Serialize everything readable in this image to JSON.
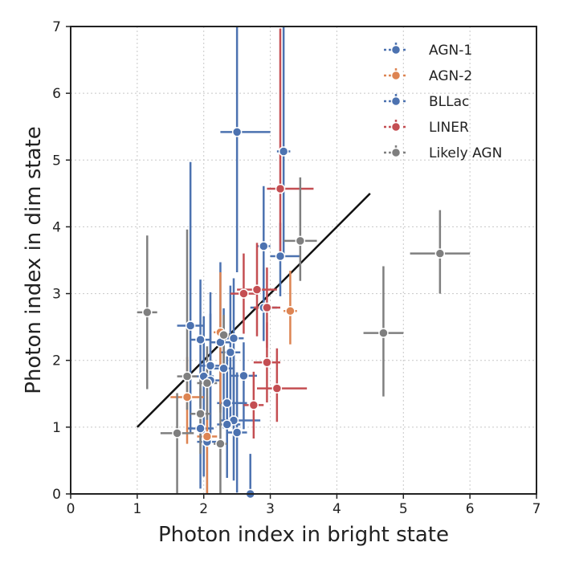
{
  "chart_data": {
    "type": "scatter",
    "xlabel": "Photon index in bright state",
    "ylabel": "Photon index in dim state",
    "xlim": [
      0,
      7
    ],
    "ylim": [
      0,
      7
    ],
    "xticks": [
      "0",
      "1",
      "2",
      "3",
      "4",
      "5",
      "6",
      "7"
    ],
    "yticks": [
      "0",
      "1",
      "2",
      "3",
      "4",
      "5",
      "6",
      "7"
    ],
    "grid": true,
    "legend_position": "top-right",
    "reference_line": {
      "x": [
        1,
        4.5
      ],
      "y": [
        1,
        4.5
      ],
      "color": "#111111"
    },
    "series": [
      {
        "name": "AGN-1",
        "color": "#4c72b0",
        "points": [
          {
            "x": 2.5,
            "y": 5.42,
            "xl": 0.25,
            "xr": 0.5,
            "yl": 2.1,
            "yh": 1.6
          },
          {
            "x": 3.2,
            "y": 5.13,
            "xl": 0.1,
            "xr": 0.1,
            "yl": 1.6,
            "yh": 1.9
          },
          {
            "x": 2.9,
            "y": 3.71,
            "xl": 0.1,
            "xr": 0.1,
            "yl": 0.8,
            "yh": 0.9
          },
          {
            "x": 3.15,
            "y": 3.56,
            "xl": 0.15,
            "xr": 0.3,
            "yl": 0.6,
            "yh": 0.5
          },
          {
            "x": 2.9,
            "y": 2.79,
            "xl": 0.2,
            "xr": 0.2,
            "yl": 0.5,
            "yh": 0.6
          },
          {
            "x": 1.8,
            "y": 2.52,
            "xl": 0.2,
            "xr": 0.2,
            "yl": 1.6,
            "yh": 2.45
          },
          {
            "x": 1.95,
            "y": 2.31,
            "xl": 0.15,
            "xr": 0.15,
            "yl": 1.0,
            "yh": 0.9
          },
          {
            "x": 2.45,
            "y": 2.33,
            "xl": 0.15,
            "xr": 0.15,
            "yl": 1.2,
            "yh": 0.9
          },
          {
            "x": 2.25,
            "y": 2.27,
            "xl": 0.15,
            "xr": 0.15,
            "yl": 1.0,
            "yh": 1.2
          },
          {
            "x": 2.4,
            "y": 2.12,
            "xl": 0.15,
            "xr": 0.15,
            "yl": 1.0,
            "yh": 1.0
          },
          {
            "x": 2.1,
            "y": 1.92,
            "xl": 0.15,
            "xr": 0.15,
            "yl": 0.9,
            "yh": 1.1
          },
          {
            "x": 2.3,
            "y": 1.88,
            "xl": 0.15,
            "xr": 0.15,
            "yl": 0.9,
            "yh": 0.9
          },
          {
            "x": 2.0,
            "y": 1.76,
            "xl": 0.15,
            "xr": 0.15,
            "yl": 1.5,
            "yh": 0.9
          },
          {
            "x": 2.1,
            "y": 1.7,
            "xl": 0.15,
            "xr": 0.15,
            "yl": 0.9,
            "yh": 1.0
          },
          {
            "x": 2.6,
            "y": 1.77,
            "xl": 0.2,
            "xr": 0.2,
            "yl": 0.8,
            "yh": 0.5
          },
          {
            "x": 2.35,
            "y": 1.36,
            "xl": 0.15,
            "xr": 0.3,
            "yl": 0.6,
            "yh": 0.7
          },
          {
            "x": 2.45,
            "y": 1.1,
            "xl": 0.2,
            "xr": 0.4,
            "yl": 0.9,
            "yh": 1.0
          },
          {
            "x": 2.35,
            "y": 1.04,
            "xl": 0.15,
            "xr": 0.2,
            "yl": 0.8,
            "yh": 0.9
          },
          {
            "x": 1.95,
            "y": 0.98,
            "xl": 0.2,
            "xr": 0.2,
            "yl": 0.9,
            "yh": 0.6
          },
          {
            "x": 2.5,
            "y": 0.92,
            "xl": 0.15,
            "xr": 0.15,
            "yl": 0.9,
            "yh": 0.9
          },
          {
            "x": 2.05,
            "y": 0.78,
            "xl": 0.15,
            "xr": 0.15,
            "yl": 0.78,
            "yh": 1.0
          },
          {
            "x": 2.7,
            "y": 0.0,
            "xl": 0.0,
            "xr": 0.0,
            "yl": 0.0,
            "yh": 0.6
          }
        ]
      },
      {
        "name": "AGN-2",
        "color": "#dd8452",
        "points": [
          {
            "x": 3.3,
            "y": 2.74,
            "xl": 0.1,
            "xr": 0.1,
            "yl": 0.5,
            "yh": 0.6
          },
          {
            "x": 2.25,
            "y": 2.42,
            "xl": 0.1,
            "xr": 0.1,
            "yl": 1.2,
            "yh": 0.9
          },
          {
            "x": 1.75,
            "y": 1.45,
            "xl": 0.25,
            "xr": 0.25,
            "yl": 0.7,
            "yh": 0.6
          },
          {
            "x": 2.05,
            "y": 0.86,
            "xl": 0.15,
            "xr": 0.15,
            "yl": 0.86,
            "yh": 0.6
          }
        ]
      },
      {
        "name": "BLLac",
        "color": "#4c72b0",
        "points": []
      },
      {
        "name": "LINER",
        "color": "#c44e52",
        "points": [
          {
            "x": 3.15,
            "y": 4.57,
            "xl": 0.2,
            "xr": 0.5,
            "yl": 1.0,
            "yh": 2.4
          },
          {
            "x": 2.95,
            "y": 2.79,
            "xl": 0.2,
            "xr": 0.2,
            "yl": 0.6,
            "yh": 0.6
          },
          {
            "x": 2.8,
            "y": 3.06,
            "xl": 0.3,
            "xr": 0.3,
            "yl": 0.7,
            "yh": 0.7
          },
          {
            "x": 2.6,
            "y": 3.0,
            "xl": 0.2,
            "xr": 0.2,
            "yl": 0.6,
            "yh": 0.6
          },
          {
            "x": 2.95,
            "y": 1.97,
            "xl": 0.2,
            "xr": 0.2,
            "yl": 0.6,
            "yh": 0.6
          },
          {
            "x": 3.1,
            "y": 1.58,
            "xl": 0.3,
            "xr": 0.45,
            "yl": 0.5,
            "yh": 0.6
          },
          {
            "x": 2.75,
            "y": 1.33,
            "xl": 0.15,
            "xr": 0.15,
            "yl": 0.5,
            "yh": 0.5
          }
        ]
      },
      {
        "name": "Likely AGN",
        "color": "#7f7f7f",
        "points": [
          {
            "x": 5.55,
            "y": 3.6,
            "xl": 0.45,
            "xr": 0.45,
            "yl": 0.6,
            "yh": 0.65
          },
          {
            "x": 4.7,
            "y": 2.41,
            "xl": 0.3,
            "xr": 0.3,
            "yl": 0.95,
            "yh": 1.0
          },
          {
            "x": 3.45,
            "y": 3.79,
            "xl": 0.25,
            "xr": 0.25,
            "yl": 0.6,
            "yh": 0.95
          },
          {
            "x": 1.15,
            "y": 2.72,
            "xl": 0.15,
            "xr": 0.15,
            "yl": 1.15,
            "yh": 1.15
          },
          {
            "x": 2.3,
            "y": 2.38,
            "xl": 0.1,
            "xr": 0.1,
            "yl": 0.5,
            "yh": 0.3
          },
          {
            "x": 1.75,
            "y": 1.76,
            "xl": 0.15,
            "xr": 0.15,
            "yl": 0.5,
            "yh": 2.2
          },
          {
            "x": 2.05,
            "y": 1.66,
            "xl": 0.15,
            "xr": 0.15,
            "yl": 0.55,
            "yh": 0.55
          },
          {
            "x": 1.95,
            "y": 1.2,
            "xl": 0.15,
            "xr": 0.15,
            "yl": 0.6,
            "yh": 0.6
          },
          {
            "x": 1.6,
            "y": 0.91,
            "xl": 0.25,
            "xr": 0.25,
            "yl": 0.9,
            "yh": 0.6
          },
          {
            "x": 2.25,
            "y": 0.75,
            "xl": 0.1,
            "xr": 0.1,
            "yl": 0.75,
            "yh": 0.6
          }
        ]
      }
    ]
  }
}
